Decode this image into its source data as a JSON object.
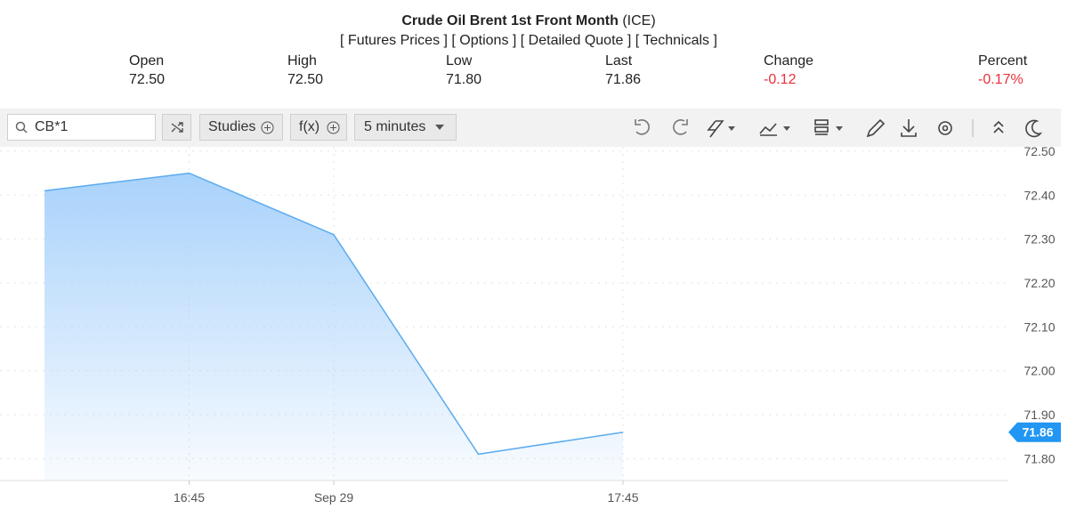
{
  "header": {
    "title": "Crude Oil Brent 1st Front Month",
    "exchange": "(ICE)",
    "links": [
      "[ Futures Prices ]",
      "[ Options ]",
      "[ Detailed Quote ]",
      "[ Technicals ]"
    ]
  },
  "quote": [
    {
      "label": "Open",
      "value": "72.50"
    },
    {
      "label": "High",
      "value": "72.50"
    },
    {
      "label": "Low",
      "value": "71.80"
    },
    {
      "label": "Last",
      "value": "71.86"
    },
    {
      "label": "Change",
      "value": "-0.12"
    },
    {
      "label": "Percent",
      "value": "-0.17%"
    }
  ],
  "toolbar": {
    "symbol": "CB*1",
    "studies": "Studies",
    "functions": "f(x)",
    "interval": "5 minutes"
  },
  "chart_data": {
    "type": "area",
    "categories": [
      null,
      "16:45",
      "Sep 29",
      null,
      "17:45"
    ],
    "values": [
      72.41,
      72.45,
      72.31,
      71.81,
      71.86
    ],
    "color": "#5aabef",
    "ylim": [
      71.75,
      72.51
    ],
    "yticks": [
      {
        "value": 72.5,
        "label": "72.50"
      },
      {
        "value": 72.4,
        "label": "72.40"
      },
      {
        "value": 72.3,
        "label": "72.30"
      },
      {
        "value": 72.2,
        "label": "72.20"
      },
      {
        "value": 72.1,
        "label": "72.10"
      },
      {
        "value": 72.0,
        "label": "72.00"
      },
      {
        "value": 71.9,
        "label": "71.90"
      },
      {
        "value": 71.8,
        "label": "71.80"
      }
    ],
    "grid": true
  }
}
